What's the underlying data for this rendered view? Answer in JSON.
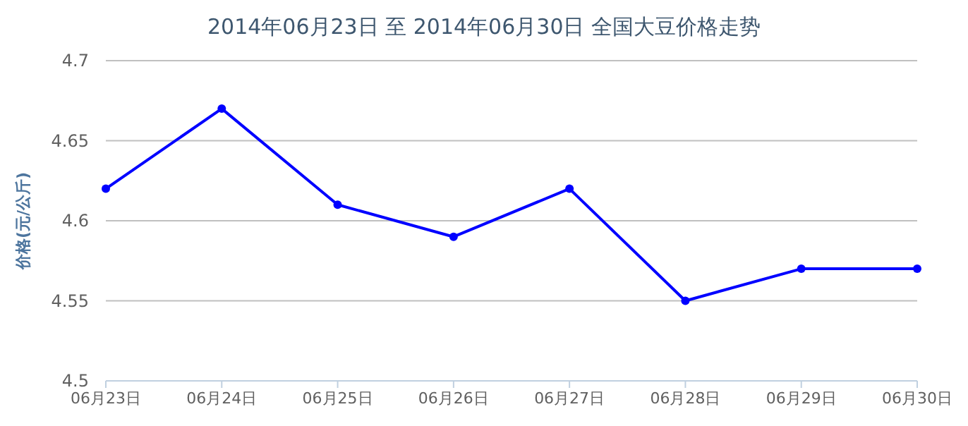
{
  "chart_data": {
    "type": "line",
    "title": "2014年06月23日 至 2014年06月30日 全国大豆价格走势",
    "ylabel": "价格(元/公斤)",
    "categories": [
      "06月23日",
      "06月24日",
      "06月25日",
      "06月26日",
      "06月27日",
      "06月28日",
      "06月29日",
      "06月30日"
    ],
    "series": [
      {
        "color": "#0000ff",
        "values": [
          4.62,
          4.67,
          4.61,
          4.59,
          4.62,
          4.55,
          4.57,
          4.57
        ]
      }
    ],
    "ylim": [
      4.5,
      4.7
    ],
    "yticks": [
      4.5,
      4.55,
      4.6,
      4.65,
      4.7
    ],
    "grid": "y",
    "marker": "circle",
    "line_style": "solid"
  }
}
